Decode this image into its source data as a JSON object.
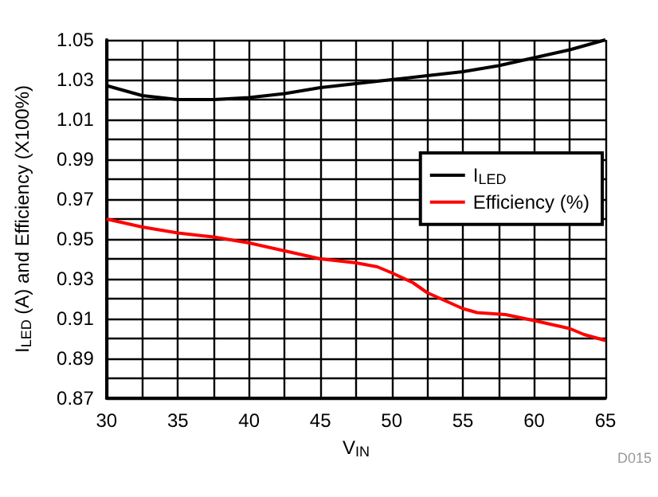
{
  "chart_data": {
    "type": "line",
    "xlabel": "V$_{IN}$",
    "ylabel": "I$_{LED}$ (A) and Efficiency (X100%)",
    "annotations": [
      "D015"
    ],
    "xlim": [
      30,
      65
    ],
    "xticks": [
      30,
      {
        "value": 32.5,
        "label": null
      },
      35,
      {
        "value": 37.5,
        "label": null
      },
      40,
      {
        "value": 42.5,
        "label": null
      },
      45,
      {
        "value": 47.5,
        "label": null
      },
      50,
      {
        "value": 52.5,
        "label": null
      },
      55,
      {
        "value": 57.5,
        "label": null
      },
      60,
      {
        "value": 62.5,
        "label": null
      },
      65
    ],
    "ylim": [
      0.87,
      1.05
    ],
    "yticks": [
      0.87,
      {
        "value": 0.88,
        "label": null
      },
      0.89,
      {
        "value": 0.9,
        "label": null
      },
      0.91,
      {
        "value": 0.92,
        "label": null
      },
      0.93,
      {
        "value": 0.94,
        "label": null
      },
      0.95,
      {
        "value": 0.96,
        "label": null
      },
      0.97,
      {
        "value": 0.98,
        "label": null
      },
      0.99,
      {
        "value": 1.0,
        "label": null
      },
      1.01,
      {
        "value": 1.02,
        "label": null
      },
      1.03,
      {
        "value": 1.04,
        "label": null
      },
      1.05
    ],
    "grid": true,
    "legend": "right",
    "marker": "none",
    "line_style": "solid",
    "series": [
      {
        "name": "I$_{LED}$",
        "color": "#000000",
        "x": [
          30,
          32.5,
          35,
          37.5,
          40,
          42.5,
          45,
          47.5,
          50,
          52.5,
          55,
          57.5,
          60,
          62.5,
          65
        ],
        "values": [
          1.027,
          1.022,
          1.02,
          1.02,
          1.021,
          1.023,
          1.026,
          1.028,
          1.03,
          1.032,
          1.034,
          1.037,
          1.041,
          1.045,
          1.05
        ]
      },
      {
        "name": "Efficiency (%)",
        "color": "#ff0000",
        "x": [
          30,
          32.5,
          35,
          37.5,
          40,
          42.5,
          45,
          47.5,
          49,
          50,
          51.5,
          52.5,
          55,
          56,
          58,
          60,
          62.5,
          63.5,
          65
        ],
        "values": [
          0.96,
          0.956,
          0.953,
          0.951,
          0.948,
          0.944,
          0.94,
          0.938,
          0.936,
          0.933,
          0.928,
          0.923,
          0.915,
          0.913,
          0.912,
          0.909,
          0.905,
          0.902,
          0.899
        ]
      }
    ]
  }
}
